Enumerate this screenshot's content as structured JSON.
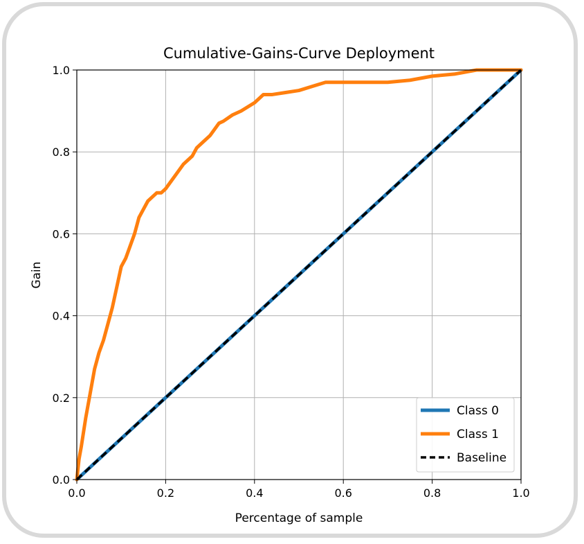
{
  "chart_data": {
    "type": "line",
    "title": "Cumulative-Gains-Curve Deployment",
    "xlabel": "Percentage of sample",
    "ylabel": "Gain",
    "xlim": [
      0.0,
      1.0
    ],
    "ylim": [
      0.0,
      1.0
    ],
    "xticks": [
      "0.0",
      "0.2",
      "0.4",
      "0.6",
      "0.8",
      "1.0"
    ],
    "yticks": [
      "0.0",
      "0.2",
      "0.4",
      "0.6",
      "0.8",
      "1.0"
    ],
    "grid": true,
    "legend_position": "lower-right",
    "series": [
      {
        "name": "Class 0",
        "color": "#1f77b4",
        "style": "solid",
        "x": [
          0.0,
          1.0
        ],
        "y": [
          0.0,
          1.0
        ]
      },
      {
        "name": "Class 1",
        "color": "#ff7f0e",
        "style": "solid",
        "x": [
          0.0,
          0.005,
          0.01,
          0.02,
          0.03,
          0.04,
          0.05,
          0.06,
          0.07,
          0.08,
          0.09,
          0.1,
          0.11,
          0.12,
          0.13,
          0.14,
          0.15,
          0.16,
          0.17,
          0.18,
          0.19,
          0.2,
          0.22,
          0.24,
          0.26,
          0.27,
          0.28,
          0.3,
          0.32,
          0.33,
          0.35,
          0.37,
          0.4,
          0.42,
          0.44,
          0.47,
          0.5,
          0.53,
          0.56,
          0.6,
          0.65,
          0.7,
          0.75,
          0.8,
          0.85,
          0.9,
          1.0
        ],
        "y": [
          0.0,
          0.05,
          0.08,
          0.15,
          0.21,
          0.27,
          0.31,
          0.34,
          0.38,
          0.42,
          0.47,
          0.52,
          0.54,
          0.57,
          0.6,
          0.64,
          0.66,
          0.68,
          0.69,
          0.7,
          0.7,
          0.71,
          0.74,
          0.77,
          0.79,
          0.81,
          0.82,
          0.84,
          0.87,
          0.875,
          0.89,
          0.9,
          0.92,
          0.94,
          0.94,
          0.945,
          0.95,
          0.96,
          0.97,
          0.97,
          0.97,
          0.97,
          0.975,
          0.985,
          0.99,
          1.0,
          1.0
        ]
      },
      {
        "name": "Baseline",
        "color": "#000000",
        "style": "dashed",
        "x": [
          0.0,
          1.0
        ],
        "y": [
          0.0,
          1.0
        ]
      }
    ]
  }
}
